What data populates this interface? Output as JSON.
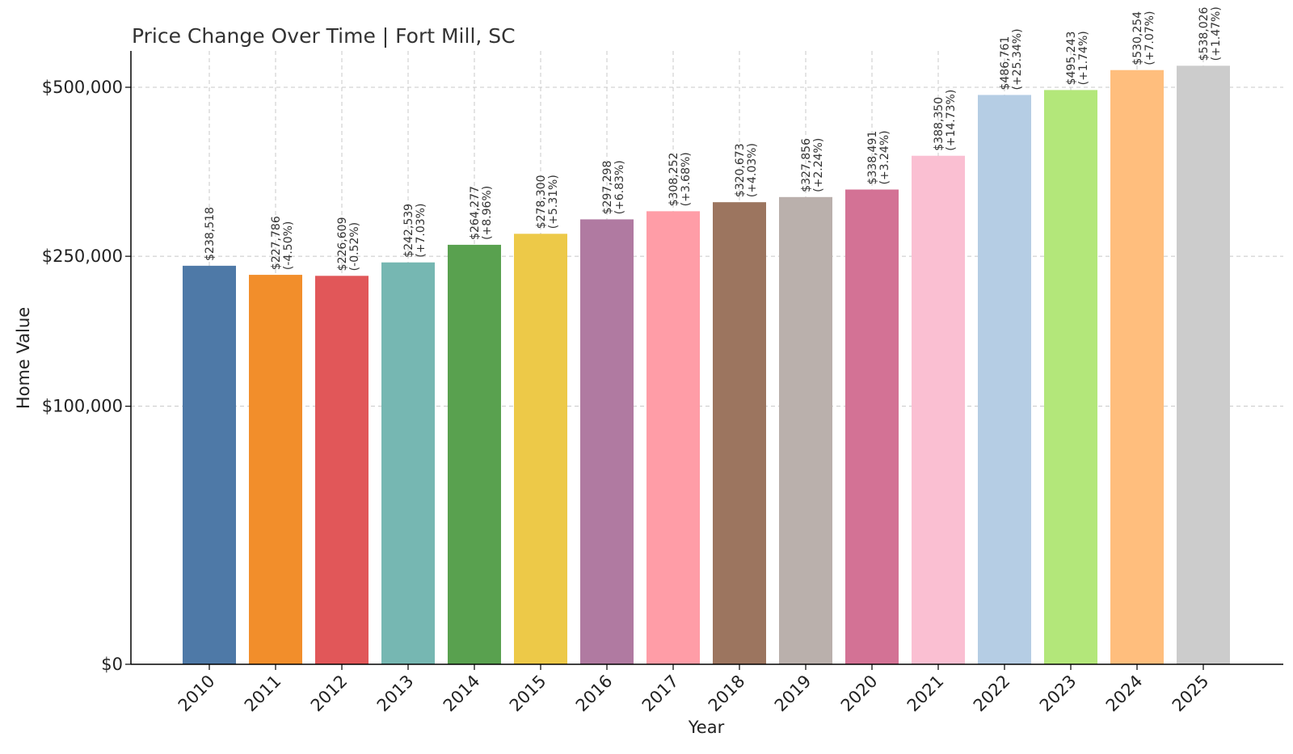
{
  "chart_data": {
    "type": "bar",
    "title": "Price Change Over Time | Fort Mill, SC",
    "xlabel": "Year",
    "ylabel": "Home Value",
    "categories": [
      "2010",
      "2011",
      "2012",
      "2013",
      "2014",
      "2015",
      "2016",
      "2017",
      "2018",
      "2019",
      "2020",
      "2021",
      "2022",
      "2023",
      "2024",
      "2025"
    ],
    "values": [
      238518,
      227786,
      226609,
      242539,
      264277,
      278300,
      297298,
      308252,
      320673,
      327856,
      338491,
      388350,
      486761,
      495243,
      530254,
      538026
    ],
    "value_labels": [
      "$238,518",
      "$227,786",
      "$226,609",
      "$242,539",
      "$264,277",
      "$278,300",
      "$297,298",
      "$308,252",
      "$320,673",
      "$327,856",
      "$338,491",
      "$388,350",
      "$486,761",
      "$495,243",
      "$530,254",
      "$538,026"
    ],
    "change_labels": [
      "",
      "(-4.50%)",
      "(-0.52%)",
      "(+7.03%)",
      "(+8.96%)",
      "(+5.31%)",
      "(+6.83%)",
      "(+3.68%)",
      "(+4.03%)",
      "(+2.24%)",
      "(+3.24%)",
      "(+14.73%)",
      "(+25.34%)",
      "(+1.74%)",
      "(+7.07%)",
      "(+1.47%)"
    ],
    "colors": [
      "#4e79a7",
      "#f28e2b",
      "#e15759",
      "#76b7b2",
      "#59a14f",
      "#edc948",
      "#b07aa1",
      "#ff9da7",
      "#9c755f",
      "#bab0ac",
      "#d37295",
      "#fabfd2",
      "#b5cde4",
      "#b3e77a",
      "#ffbe7d",
      "#cccccc"
    ],
    "yticks": [
      0,
      100000,
      250000,
      500000
    ],
    "ytick_labels": [
      "$0",
      "$100,000",
      "$250,000",
      "$500,000"
    ],
    "ylim": [
      0,
      565000
    ],
    "y_scale": "sqrt",
    "grid": true
  }
}
